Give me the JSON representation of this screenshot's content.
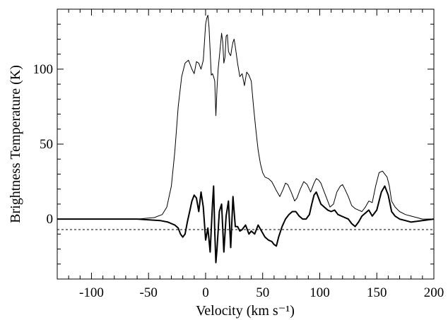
{
  "chart_data": {
    "type": "line",
    "title": "",
    "xlabel": "Velocity (km s⁻¹)",
    "ylabel": "Brightness Temperature (K)",
    "xlim": [
      -130,
      200
    ],
    "ylim": [
      -40,
      140
    ],
    "xticks": [
      -100,
      -50,
      0,
      50,
      100,
      150,
      200
    ],
    "yticks": [
      0,
      50,
      100
    ],
    "grid": false,
    "legend": "none",
    "reference_lines": [
      {
        "y": -7,
        "style": "dotted"
      }
    ],
    "series": [
      {
        "style": "thin",
        "x": [
          -130,
          -60,
          -45,
          -38,
          -34,
          -30,
          -27,
          -24,
          -21,
          -18,
          -15,
          -12,
          -10,
          -8,
          -6,
          -4,
          -2,
          0,
          1,
          2,
          3,
          4,
          5,
          6,
          7,
          8,
          9,
          10,
          11,
          12,
          13,
          14,
          15,
          16,
          17,
          18,
          19,
          20,
          21,
          22,
          23,
          24,
          25,
          26,
          28,
          30,
          32,
          34,
          36,
          38,
          40,
          42,
          44,
          46,
          48,
          50,
          52,
          55,
          58,
          60,
          62,
          65,
          68,
          70,
          72,
          75,
          78,
          80,
          83,
          86,
          89,
          92,
          95,
          97,
          99,
          101,
          103,
          106,
          109,
          112,
          115,
          118,
          120,
          122,
          125,
          128,
          131,
          134,
          137,
          140,
          143,
          146,
          149,
          152,
          155,
          157,
          159,
          161,
          163,
          166,
          170,
          175,
          180,
          185,
          190,
          195,
          200
        ],
        "values": [
          0,
          0,
          1,
          3,
          8,
          22,
          45,
          75,
          95,
          104,
          106,
          100,
          97,
          105,
          104,
          100,
          106,
          130,
          134,
          136,
          128,
          112,
          96,
          97,
          95,
          92,
          69,
          87,
          100,
          108,
          116,
          124,
          118,
          104,
          108,
          122,
          123,
          112,
          110,
          109,
          114,
          118,
          120,
          115,
          104,
          95,
          97,
          89,
          98,
          96,
          92,
          75,
          60,
          46,
          37,
          31,
          28,
          27,
          25,
          22,
          19,
          15,
          20,
          24,
          23,
          18,
          12,
          14,
          20,
          25,
          23,
          18,
          24,
          27,
          26,
          24,
          20,
          14,
          8,
          10,
          18,
          22,
          23,
          20,
          15,
          9,
          7,
          6,
          5,
          8,
          12,
          11,
          22,
          31,
          32,
          30,
          28,
          22,
          12,
          8,
          5,
          3,
          2,
          1,
          0,
          0,
          0
        ]
      },
      {
        "style": "thick",
        "x": [
          -130,
          -60,
          -40,
          -33,
          -30,
          -27,
          -24,
          -22,
          -20,
          -18,
          -16,
          -14,
          -12,
          -10,
          -8,
          -6,
          -4,
          -2,
          0,
          2,
          4,
          6,
          7,
          8,
          9,
          10,
          12,
          14,
          16,
          18,
          20,
          22,
          24,
          26,
          28,
          30,
          32,
          35,
          38,
          40,
          43,
          46,
          49,
          52,
          55,
          58,
          60,
          62,
          64,
          67,
          70,
          73,
          76,
          79,
          82,
          85,
          88,
          91,
          93,
          95,
          97,
          99,
          101,
          104,
          107,
          110,
          113,
          116,
          119,
          122,
          125,
          128,
          131,
          134,
          137,
          140,
          143,
          146,
          150,
          154,
          157,
          160,
          163,
          166,
          170,
          175,
          180,
          190,
          200
        ],
        "values": [
          0,
          0,
          -1,
          -2,
          -3,
          -4,
          -6,
          -10,
          -12,
          -10,
          -2,
          5,
          12,
          16,
          14,
          5,
          18,
          8,
          -14,
          -6,
          -22,
          10,
          22,
          -8,
          -29,
          -20,
          5,
          10,
          -22,
          2,
          12,
          -19,
          15,
          -5,
          -5,
          -8,
          -7,
          -4,
          -10,
          -8,
          -10,
          -4,
          -8,
          -12,
          -14,
          -15,
          -17,
          -18,
          -12,
          -5,
          0,
          3,
          5,
          5,
          2,
          0,
          0,
          3,
          10,
          16,
          18,
          14,
          10,
          8,
          6,
          5,
          6,
          3,
          2,
          1,
          0,
          -3,
          -5,
          -2,
          2,
          4,
          6,
          2,
          6,
          18,
          22,
          16,
          5,
          2,
          0,
          -1,
          -2,
          -1,
          0
        ]
      }
    ]
  }
}
